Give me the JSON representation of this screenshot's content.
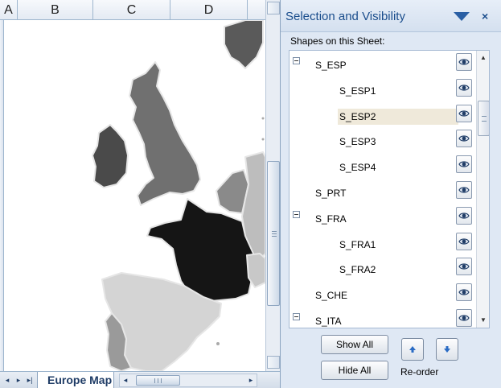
{
  "sheet": {
    "columns": [
      "A",
      "B",
      "C",
      "D"
    ],
    "tab_name": "Europe Map",
    "tab_nav": [
      "◂",
      "▸",
      "▸|"
    ],
    "hscroll_arrows": [
      "◂",
      "▸"
    ]
  },
  "map_colors": {
    "ireland": "#4a4a4a",
    "britain": "#707070",
    "norway": "#5a5a5a",
    "benelux": "#8a8a8a",
    "germany": "#bdbdbd",
    "france": "#151515",
    "spain": "#d4d4d4",
    "portugal": "#9a9a9a",
    "switzerland": "#c8c8c8"
  },
  "pane": {
    "title": "Selection and Visibility",
    "menu_icon": "triangle-down-icon",
    "close": "×",
    "shapes_label": "Shapes on this Sheet:",
    "items": [
      {
        "label": "S_ESP",
        "level": 0,
        "toggle": true,
        "selected": false
      },
      {
        "label": "S_ESP1",
        "level": 1,
        "toggle": false,
        "selected": false
      },
      {
        "label": "S_ESP2",
        "level": 1,
        "toggle": false,
        "selected": true
      },
      {
        "label": "S_ESP3",
        "level": 1,
        "toggle": false,
        "selected": false
      },
      {
        "label": "S_ESP4",
        "level": 1,
        "toggle": false,
        "selected": false
      },
      {
        "label": "S_PRT",
        "level": 0,
        "toggle": false,
        "selected": false
      },
      {
        "label": "S_FRA",
        "level": 0,
        "toggle": true,
        "selected": false
      },
      {
        "label": "S_FRA1",
        "level": 1,
        "toggle": false,
        "selected": false
      },
      {
        "label": "S_FRA2",
        "level": 1,
        "toggle": false,
        "selected": false
      },
      {
        "label": "S_CHE",
        "level": 0,
        "toggle": false,
        "selected": false
      },
      {
        "label": "S_ITA",
        "level": 0,
        "toggle": true,
        "selected": false
      }
    ],
    "show_all": "Show All",
    "hide_all": "Hide All",
    "reorder": "Re-order",
    "accent_color": "#1a4d8c"
  }
}
